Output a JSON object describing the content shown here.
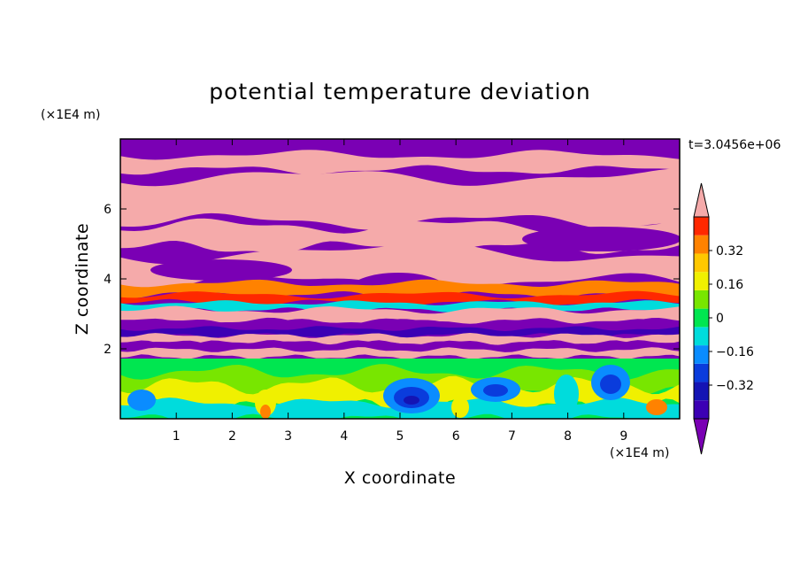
{
  "chart_data": {
    "type": "heatmap",
    "title": "potential temperature deviation",
    "xlabel": "X coordinate",
    "ylabel": "Z coordinate",
    "x_unit": "(×1E4 m)",
    "y_unit": "(×1E4 m)",
    "time_label": "t=3.0456e+06",
    "xlim": [
      0,
      10
    ],
    "ylim": [
      0,
      8
    ],
    "x_ticks": [
      "1",
      "2",
      "3",
      "4",
      "5",
      "6",
      "7",
      "8",
      "9"
    ],
    "y_ticks": [
      "2",
      "4",
      "6"
    ],
    "colorbar": {
      "levels": [
        -0.48,
        -0.4,
        -0.32,
        -0.24,
        -0.16,
        -0.08,
        0,
        0.08,
        0.16,
        0.24,
        0.32,
        0.4,
        0.48
      ],
      "tick_labels": [
        "0.32",
        "0.16",
        "0",
        "−0.16",
        "−0.32"
      ],
      "colors": [
        "#7a00b4",
        "#3c00b4",
        "#1414b4",
        "#0a3cdc",
        "#0a8cff",
        "#00dcdc",
        "#00e650",
        "#78e600",
        "#f0f000",
        "#ffc800",
        "#ff8200",
        "#ff2800",
        "#f5aaaa"
      ]
    }
  }
}
